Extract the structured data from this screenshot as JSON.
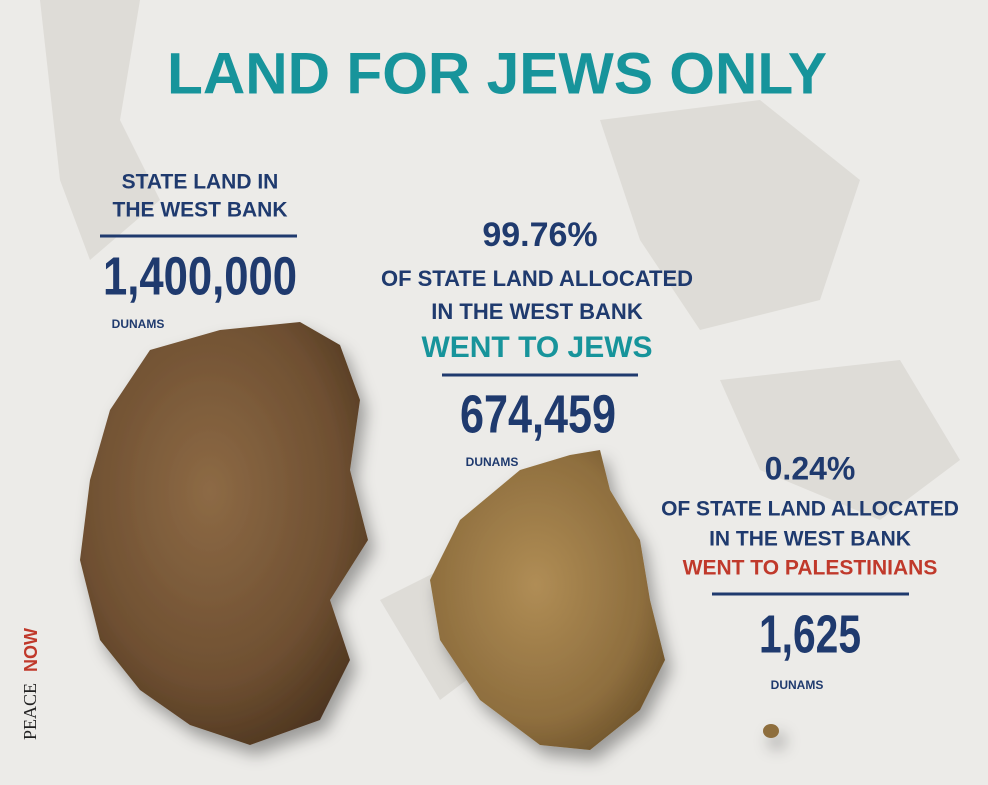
{
  "title": "LAND FOR JEWS ONLY",
  "state_land": {
    "heading_lines": [
      "STATE LAND IN",
      "THE WEST BANK"
    ],
    "amount": "1,400,000",
    "unit": "DUNAMS"
  },
  "jews": {
    "percent": "99.76%",
    "description_lines": [
      "OF STATE LAND ALLOCATED",
      "IN THE WEST BANK"
    ],
    "highlight": "WENT TO JEWS",
    "amount": "674,459",
    "unit": "DUNAMS"
  },
  "palestinians": {
    "percent": "0.24%",
    "description_lines": [
      "OF STATE LAND ALLOCATED",
      "IN THE WEST BANK"
    ],
    "highlight": "WENT TO PALESTINIANS",
    "amount": "1,625",
    "unit": "DUNAMS"
  },
  "logo": {
    "part1": "PEACE",
    "part2": "NOW"
  }
}
